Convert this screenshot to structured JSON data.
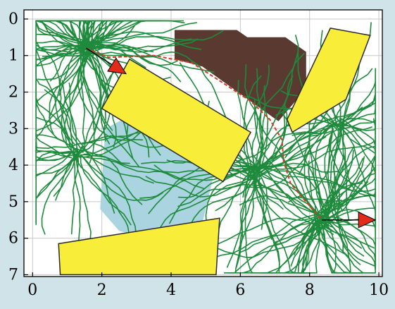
{
  "chart_data": {
    "type": "diagram",
    "title": "",
    "xlabel": "",
    "ylabel": "",
    "xlim": [
      -0.25,
      10.1
    ],
    "ylim": [
      7.05,
      -0.25
    ],
    "x_ticks": [
      "0",
      "2",
      "4",
      "6",
      "8",
      "10"
    ],
    "x_tick_values": [
      0,
      2,
      4,
      6,
      8,
      10
    ],
    "y_ticks": [
      "0",
      "1",
      "2",
      "3",
      "4",
      "5",
      "6",
      "7"
    ],
    "y_tick_values": [
      0,
      1,
      2,
      3,
      4,
      5,
      6,
      7
    ],
    "grid": true,
    "colors": {
      "background": "#ffffff",
      "outer": "#cfe3e8",
      "obstacle_fill": "#f8ee3a",
      "obstacle_stroke": "#2a2a2a",
      "brown_region": "#5a3a30",
      "blue_region": "#a9d4e0",
      "tree_edges": "#1e8a3c",
      "path": "#d33a2a",
      "start_goal_marker": "#e32b1b",
      "grid": "#c8c8c8",
      "axes": "#000000"
    },
    "brown_region": [
      [
        4.1,
        0.3
      ],
      [
        5.9,
        0.3
      ],
      [
        6.2,
        0.5
      ],
      [
        7.3,
        0.5
      ],
      [
        7.9,
        0.9
      ],
      [
        7.9,
        1.9
      ],
      [
        7.1,
        2.8
      ],
      [
        4.9,
        1.3
      ],
      [
        4.1,
        1.1
      ]
    ],
    "blue_region": [
      [
        2.1,
        3.0
      ],
      [
        2.7,
        2.7
      ],
      [
        5.1,
        3.2
      ],
      [
        5.2,
        4.4
      ],
      [
        4.9,
        5.6
      ],
      [
        3.6,
        6.1
      ],
      [
        2.5,
        5.8
      ],
      [
        1.95,
        5.2
      ]
    ],
    "obstacles": [
      {
        "name": "rect-center",
        "points": [
          [
            2.8,
            1.1
          ],
          [
            6.3,
            3.1
          ],
          [
            5.5,
            4.45
          ],
          [
            2.0,
            2.45
          ]
        ]
      },
      {
        "name": "quad-top-right",
        "points": [
          [
            8.6,
            0.25
          ],
          [
            9.75,
            0.45
          ],
          [
            9.05,
            2.2
          ],
          [
            7.5,
            3.1
          ],
          [
            7.35,
            2.75
          ]
        ]
      },
      {
        "name": "quad-bottom",
        "points": [
          [
            0.75,
            6.15
          ],
          [
            5.4,
            5.45
          ],
          [
            5.3,
            7.0
          ],
          [
            0.8,
            7.0
          ]
        ]
      }
    ],
    "trees": [
      {
        "name": "start-tree",
        "root": [
          1.55,
          0.8
        ],
        "count": 90,
        "seed": 11
      },
      {
        "name": "left-tree",
        "root": [
          1.3,
          3.6
        ],
        "count": 45,
        "seed": 23
      },
      {
        "name": "goal-tree",
        "root": [
          8.35,
          5.5
        ],
        "count": 70,
        "seed": 37
      },
      {
        "name": "mid-tree",
        "root": [
          6.4,
          4.2
        ],
        "count": 60,
        "seed": 51
      },
      {
        "name": "right-tree",
        "root": [
          8.8,
          2.9
        ],
        "count": 40,
        "seed": 67
      }
    ],
    "path": [
      [
        1.55,
        0.8
      ],
      [
        2.2,
        1.05
      ],
      [
        3.5,
        1.0
      ],
      [
        4.6,
        1.2
      ],
      [
        5.5,
        1.75
      ],
      [
        6.3,
        2.25
      ],
      [
        6.85,
        2.75
      ],
      [
        7.2,
        3.3
      ],
      [
        7.25,
        3.9
      ],
      [
        7.45,
        4.5
      ],
      [
        7.85,
        4.95
      ],
      [
        8.35,
        5.5
      ]
    ],
    "start": {
      "from": [
        1.55,
        0.8
      ],
      "to": [
        2.7,
        1.5
      ]
    },
    "goal": {
      "from": [
        8.35,
        5.5
      ],
      "to": [
        9.9,
        5.5
      ]
    }
  }
}
